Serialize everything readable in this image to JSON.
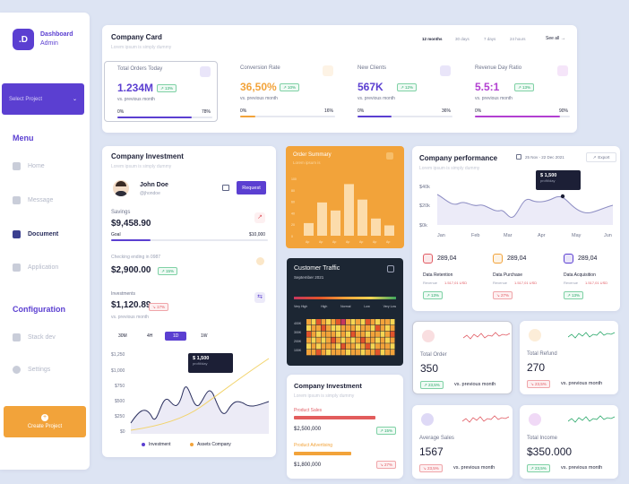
{
  "brand": {
    "logo": ".D",
    "name": "Dashboard",
    "sub": "Admin"
  },
  "sidebar": {
    "select_label": "Select Project",
    "menu_title": "Menu",
    "items": [
      {
        "label": "Home"
      },
      {
        "label": "Message"
      },
      {
        "label": "Document"
      },
      {
        "label": "Application"
      }
    ],
    "config_title": "Configuration",
    "config_items": [
      {
        "label": "Stack dev"
      },
      {
        "label": "Settings"
      }
    ],
    "create_label": "Create Project"
  },
  "company_card": {
    "title": "Company Card",
    "subtitle": "Lorem ipsum is simply dummy",
    "tabs": [
      "12 months",
      "30 days",
      "7 days",
      "24 hours"
    ],
    "see_all": "See all",
    "stats": [
      {
        "label": "Total Orders Today",
        "value": "1.234M",
        "badge": "13%",
        "note": "vs. previous month",
        "min": "0%",
        "max": "78%",
        "progress": 0.78,
        "color": "#5b3fd1"
      },
      {
        "label": "Conversion Rate",
        "value": "36,50%",
        "badge": "10%",
        "note": "vs. previous month",
        "min": "0%",
        "max": "16%",
        "progress": 0.16,
        "color": "#f2a33a"
      },
      {
        "label": "New Clients",
        "value": "567K",
        "badge": "12%",
        "note": "vs. previous month",
        "min": "0%",
        "max": "36%",
        "progress": 0.36,
        "color": "#5b3fd1"
      },
      {
        "label": "Revenue Day Ratio",
        "value": "5.5:1",
        "badge": "13%",
        "note": "vs. previous month",
        "min": "0%",
        "max": "90%",
        "progress": 0.9,
        "color": "#b23fd1"
      }
    ]
  },
  "investment": {
    "title": "Company Investment",
    "subtitle": "Lorem ipsum is simply dummy",
    "user": "John Doe",
    "handle": "@jhondoe",
    "request": "Request",
    "savings_label": "Savings",
    "savings_value": "$9,458.90",
    "goal_label": "Goal",
    "goal_value": "$10,000",
    "checking_label": "Checking ending in 0987",
    "checking_value": "$2,900.00",
    "checking_badge": "15%",
    "invest_label": "Investments",
    "invest_value": "$1,120.89",
    "invest_badge": "17%",
    "invest_note": "vs. previous month",
    "periods": [
      "30M",
      "4H",
      "1D",
      "1W"
    ],
    "tooltip_value": "$ 1,500",
    "tooltip_sub": "profit/day",
    "legend": [
      "Investment",
      "Assets Company"
    ]
  },
  "order_summary": {
    "title": "Order Summary",
    "subtitle": "Lorem ipsum is",
    "values": [
      22,
      58,
      44,
      90,
      63,
      30,
      18
    ]
  },
  "traffic": {
    "title": "Customer Traffic",
    "subtitle": "September 2021",
    "legend": [
      "Very High",
      "High",
      "Normal",
      "Low",
      "Very Low"
    ],
    "ylabels": [
      "400K",
      "300K",
      "200K",
      "100K"
    ]
  },
  "investment2": {
    "title": "Company Investment",
    "subtitle": "Lorem ipsum is simply dummy",
    "p1_label": "Product Sales",
    "p1_value": "$2,500,000",
    "p1_badge": "15%",
    "p2_label": "Product Advertising",
    "p2_value": "$1,800,000",
    "p2_badge": "27%"
  },
  "performance": {
    "title": "Company performance",
    "subtitle": "Lorem ipsum is simply dummy",
    "date": "25 Nov - 22 Dec 2021",
    "export": "Export",
    "y": [
      "$40k",
      "$20k",
      "$0k"
    ],
    "x": [
      "Jan",
      "Feb",
      "Mar",
      "Apr",
      "May",
      "Jun"
    ],
    "tooltip_value": "$ 1,500",
    "tooltip_sub": "profit/day",
    "items": [
      {
        "value": "289,04",
        "label": "Data Retention",
        "meta": "Revenue",
        "amount": "1.517,01 USD",
        "badge": "13%",
        "trend": "up",
        "color": "#e15b63"
      },
      {
        "value": "289,04",
        "label": "Data Purchase",
        "meta": "Revenue",
        "amount": "1.517,01 USD",
        "badge": "27%",
        "trend": "down",
        "color": "#f2a33a"
      },
      {
        "value": "289,04",
        "label": "Data Acquisition",
        "meta": "Revenue",
        "amount": "1.517,01 USD",
        "badge": "13%",
        "trend": "up",
        "color": "#5b3fd1"
      }
    ]
  },
  "mini": [
    {
      "label": "Total Order",
      "value": "350",
      "badge": "23,5%",
      "trend": "up",
      "note": "vs. previous month",
      "icon_color": "#e15b63",
      "line": "#e15b63"
    },
    {
      "label": "Total Refund",
      "value": "270",
      "badge": "23,5%",
      "trend": "down",
      "note": "vs. previous month",
      "icon_color": "#f2a33a",
      "line": "#2aa86a"
    },
    {
      "label": "Average Sales",
      "value": "1567",
      "badge": "23,5%",
      "trend": "down",
      "note": "vs. previous month",
      "icon_color": "#5b3fd1",
      "line": "#e15b63"
    },
    {
      "label": "Total Income",
      "value": "$350.000",
      "badge": "23,5%",
      "trend": "up",
      "note": "vs. previous month",
      "icon_color": "#b23fd1",
      "line": "#2aa86a"
    }
  ]
}
